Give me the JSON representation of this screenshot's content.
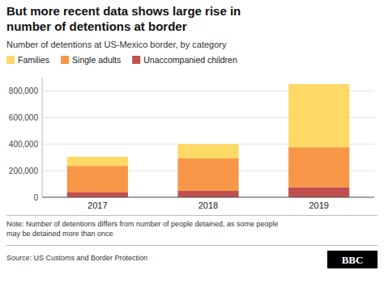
{
  "chart_data": {
    "type": "bar",
    "stacked": true,
    "title": "But more recent data shows large rise in\nnumber of detentions at border",
    "subtitle": "Number of detentions at US-Mexico border, by category",
    "categories": [
      "2017",
      "2018",
      "2019"
    ],
    "series": [
      {
        "name": "Unaccompanied children",
        "color": "#c0504d",
        "values": [
          40000,
          50000,
          76000
        ]
      },
      {
        "name": "Single adults",
        "color": "#f79646",
        "values": [
          196000,
          242000,
          300000
        ]
      },
      {
        "name": "Families",
        "color": "#ffd966",
        "values": [
          69000,
          108000,
          475000
        ]
      }
    ],
    "ylim": [
      0,
      900000
    ],
    "yticks": [
      0,
      {
        "value": 200000,
        "label": "200,000"
      },
      {
        "value": 400000,
        "label": "400,000"
      },
      {
        "value": 600000,
        "label": "600,000"
      },
      {
        "value": 800000,
        "label": "800,000"
      }
    ],
    "grid": true,
    "legend": "top",
    "note": "Note: Number of detentions differs from number of people detained, as some people\nmay be detained more than once",
    "source": "Source: US Customs and Border Protection",
    "logo": "BBC"
  }
}
